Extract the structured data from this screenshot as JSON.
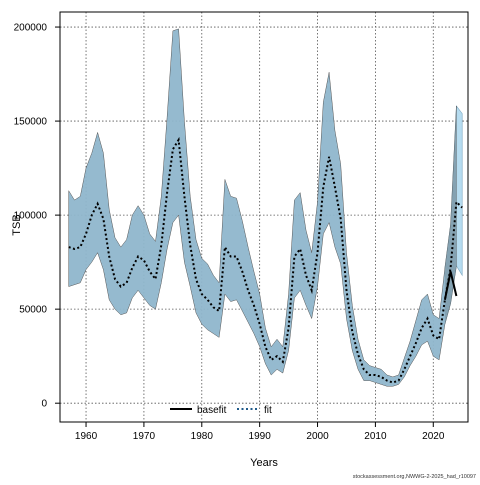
{
  "chart_data": {
    "type": "line",
    "xlabel": "Years",
    "ylabel": "TSB",
    "watermark": "stockassessment.org,NWWG-2-2025_had_r10097",
    "xlim": [
      1955.5,
      2026
    ],
    "ylim": [
      -10000,
      208000
    ],
    "x_ticks": [
      1960,
      1970,
      1980,
      1990,
      2000,
      2010,
      2020
    ],
    "y_ticks": [
      0,
      50000,
      100000,
      150000,
      200000
    ],
    "grid": true,
    "grid_style": "dotted",
    "legend": {
      "position": "bottom-center",
      "entries": [
        {
          "label": "basefit",
          "style": "solid",
          "color": "#000000"
        },
        {
          "label": "fit",
          "style": "dotted",
          "color": "#1f5a8a"
        }
      ]
    },
    "colors": {
      "ci_band": "#8fb6cc",
      "ci_band_edge": "#555555",
      "fit_line": "#000000",
      "basefit_line": "#000000",
      "forecast_band": "#b6dcf0",
      "forecast_overlap": "#7a8f9a"
    },
    "series": [
      {
        "name": "fit",
        "x": [
          1957,
          1958,
          1959,
          1960,
          1961,
          1962,
          1963,
          1964,
          1965,
          1966,
          1967,
          1968,
          1969,
          1970,
          1971,
          1972,
          1973,
          1974,
          1975,
          1976,
          1977,
          1978,
          1979,
          1980,
          1981,
          1982,
          1983,
          1984,
          1985,
          1986,
          1987,
          1988,
          1989,
          1990,
          1991,
          1992,
          1993,
          1994,
          1995,
          1996,
          1997,
          1998,
          1999,
          2000,
          2001,
          2002,
          2003,
          2004,
          2005,
          2006,
          2007,
          2008,
          2009,
          2010,
          2011,
          2012,
          2013,
          2014,
          2015,
          2016,
          2017,
          2018,
          2019,
          2020,
          2021,
          2022,
          2023,
          2024,
          2025
        ],
        "values": [
          83000,
          82000,
          83000,
          90000,
          100000,
          106000,
          98000,
          78000,
          66000,
          62000,
          64000,
          72000,
          78000,
          76000,
          70000,
          66000,
          84000,
          112000,
          135000,
          140000,
          110000,
          84000,
          66000,
          58000,
          55000,
          51000,
          49000,
          83000,
          78000,
          78000,
          70000,
          60000,
          52000,
          42000,
          30000,
          23000,
          25000,
          22000,
          40000,
          78000,
          82000,
          68000,
          60000,
          80000,
          115000,
          131000,
          115000,
          98000,
          60000,
          38000,
          26000,
          18000,
          15000,
          15000,
          14000,
          12000,
          11000,
          12000,
          18000,
          25000,
          32000,
          40000,
          45000,
          36000,
          34000,
          55000,
          72000,
          107000,
          104000
        ],
        "lower": [
          62000,
          63000,
          64000,
          71000,
          75000,
          80000,
          71000,
          55000,
          50000,
          47000,
          48000,
          56000,
          60000,
          56000,
          52000,
          50000,
          64000,
          82000,
          96000,
          100000,
          75000,
          62000,
          48000,
          42000,
          39000,
          37000,
          35000,
          58000,
          54000,
          55000,
          49000,
          43000,
          37000,
          30000,
          21000,
          15000,
          18000,
          16000,
          28000,
          56000,
          60000,
          52000,
          45000,
          62000,
          90000,
          96000,
          83000,
          74000,
          45000,
          28000,
          18000,
          12000,
          12000,
          11000,
          10000,
          9000,
          9000,
          10000,
          14000,
          20000,
          25000,
          31000,
          33000,
          25000,
          23000,
          42000,
          53000,
          73000,
          68000
        ],
        "upper": [
          113000,
          108000,
          110000,
          125000,
          133000,
          144000,
          133000,
          103000,
          88000,
          83000,
          87000,
          100000,
          105000,
          100000,
          90000,
          86000,
          110000,
          152000,
          198000,
          199000,
          150000,
          110000,
          87000,
          77000,
          74000,
          68000,
          64000,
          119000,
          110000,
          109000,
          97000,
          83000,
          70000,
          58000,
          40000,
          30000,
          34000,
          30000,
          58000,
          108000,
          112000,
          92000,
          80000,
          107000,
          160000,
          176000,
          145000,
          127000,
          80000,
          52000,
          34000,
          23000,
          20000,
          19000,
          18000,
          15000,
          14000,
          15000,
          24000,
          33000,
          44000,
          55000,
          58000,
          47000,
          45000,
          72000,
          95000,
          158000,
          154000
        ]
      },
      {
        "name": "basefit",
        "x": [
          2022,
          2023,
          2024
        ],
        "values": [
          55000,
          70000,
          57000
        ]
      }
    ]
  }
}
